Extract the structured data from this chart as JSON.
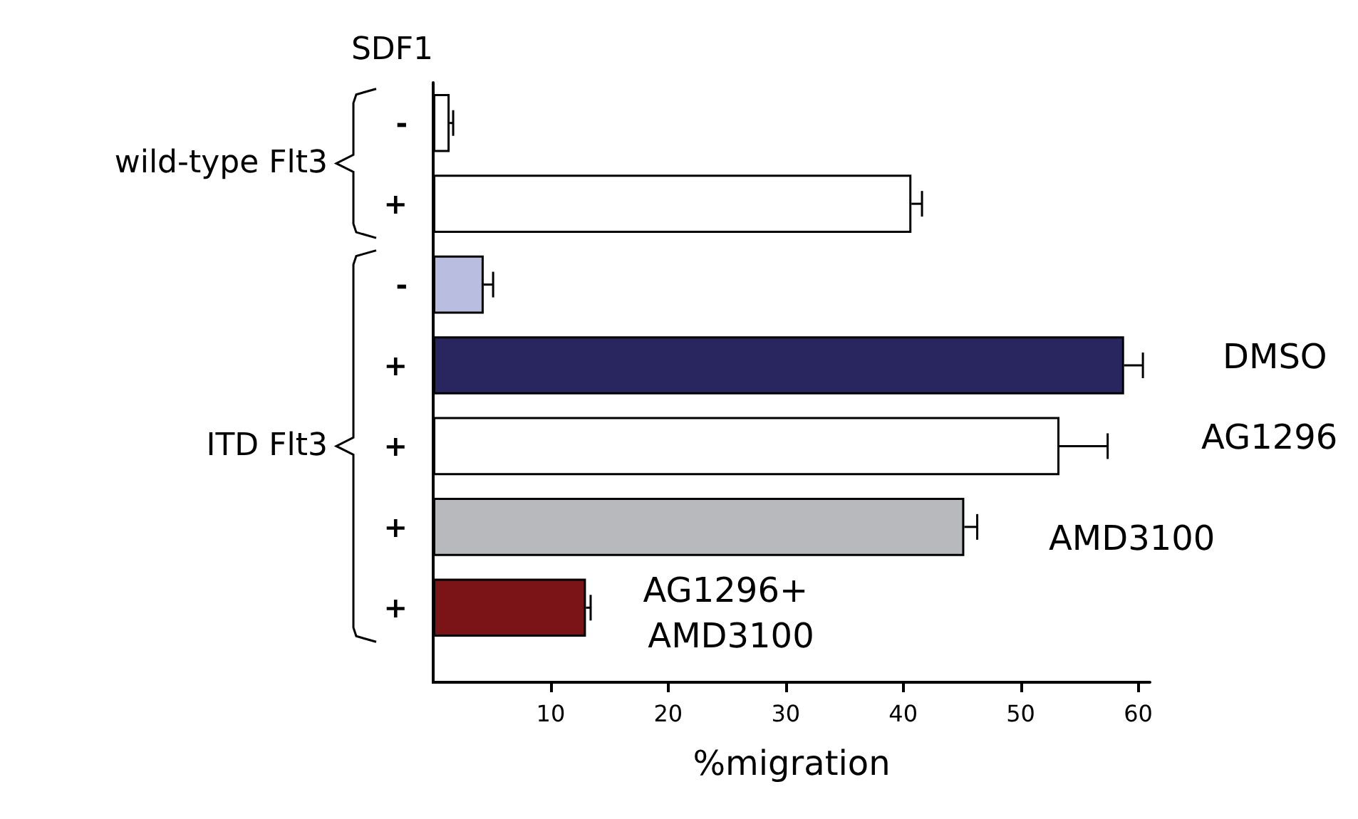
{
  "chart_data": {
    "type": "bar",
    "orientation": "horizontal",
    "ylabel": "SDF1",
    "xlabel": "%migration",
    "categories": [
      "-",
      "+",
      "-",
      "+",
      "+",
      "+",
      "+"
    ],
    "values": [
      1.4,
      40.7,
      4.3,
      58.8,
      53.3,
      45.2,
      13.0
    ],
    "errors": [
      0.3,
      0.9,
      0.8,
      1.6,
      4.1,
      1.1,
      0.4
    ],
    "colors": [
      "#ffffff",
      "#ffffff",
      "#b9bde0",
      "#29265f",
      "#ffffff",
      "#b8b9bc",
      "#7a1416"
    ],
    "xlim": [
      0,
      61
    ],
    "xticks": [
      10,
      20,
      30,
      40,
      50,
      60
    ],
    "annotations": [
      "wild-type Flt3",
      "ITD Flt3",
      "DMSO",
      "AG1296",
      "AMD3100",
      "AG1296+ AMD3100"
    ]
  }
}
